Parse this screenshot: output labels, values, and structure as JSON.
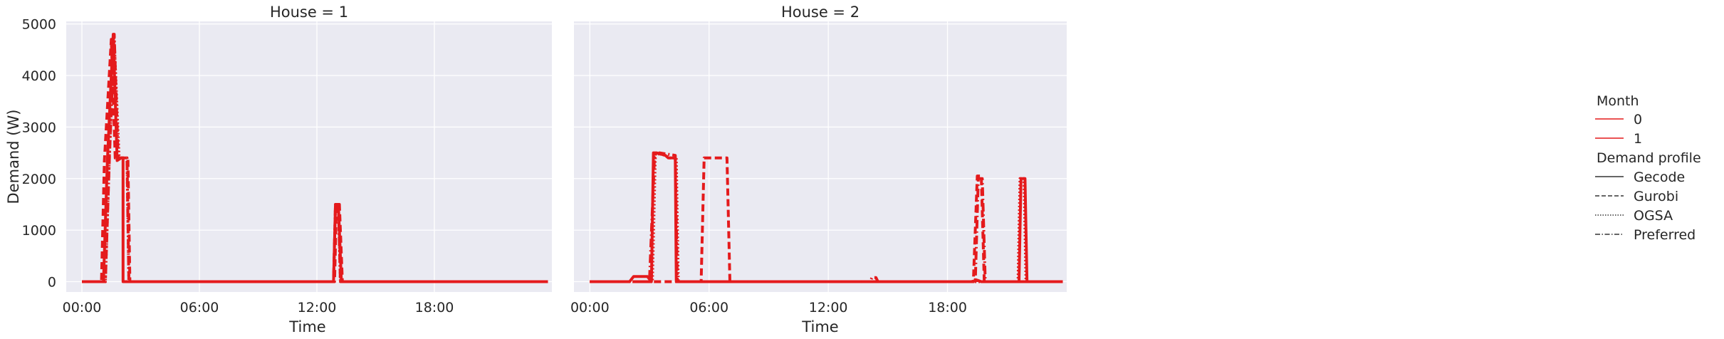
{
  "chart_data": {
    "type": "line",
    "facet_column": "House",
    "panels": [
      {
        "title": "House = 1"
      },
      {
        "title": "House = 2"
      }
    ],
    "xlabel": "Time",
    "ylabel": "Demand (W)",
    "x_ticks": [
      "00:00",
      "06:00",
      "12:00",
      "18:00"
    ],
    "y_ticks": [
      0,
      1000,
      2000,
      3000,
      4000,
      5000
    ],
    "xlim": [
      -0.8,
      24.0
    ],
    "ylim": [
      -200,
      5050
    ],
    "grid": true,
    "legend_position": "right",
    "legend": {
      "hue_title": "Month",
      "hue_entries": [
        "0",
        "1"
      ],
      "style_title": "Demand profile",
      "style_entries": [
        "Gecode",
        "Gurobi",
        "OGSA",
        "Preferred"
      ]
    },
    "colors": {
      "series": "#e41a1c",
      "panel_bg": "#eaeaf2",
      "grid": "#ffffff"
    },
    "series": [
      {
        "panel": 0,
        "style": "Gecode",
        "x": [
          0,
          1.1,
          1.3,
          1.6,
          1.8,
          2.0,
          2.1,
          2.1,
          2.35,
          2.4,
          12.85,
          12.95,
          13.1,
          13.25,
          23.8
        ],
        "y": [
          0,
          0,
          2350,
          4800,
          2350,
          2400,
          2400,
          0,
          0,
          0,
          0,
          1500,
          1500,
          0,
          0
        ]
      },
      {
        "panel": 0,
        "style": "Gurobi",
        "x": [
          0,
          1.0,
          1.15,
          1.5,
          1.7,
          1.9,
          2.1,
          2.35,
          2.45,
          12.9,
          13.0,
          13.15,
          13.3,
          23.8
        ],
        "y": [
          0,
          0,
          2350,
          4700,
          2400,
          2400,
          2400,
          2400,
          0,
          0,
          1500,
          1500,
          0,
          0
        ]
      },
      {
        "panel": 0,
        "style": "OGSA",
        "x": [
          0,
          1.2,
          1.4,
          1.65,
          1.9,
          2.1,
          2.3,
          2.4,
          12.85,
          12.95,
          13.1,
          13.2,
          23.8
        ],
        "y": [
          0,
          0,
          2400,
          4700,
          2400,
          2400,
          2400,
          0,
          0,
          1500,
          1500,
          0,
          0
        ]
      },
      {
        "panel": 0,
        "style": "Preferred",
        "x": [
          0,
          1.2,
          1.4,
          1.65,
          1.85,
          2.05,
          2.3,
          2.4,
          12.85,
          12.95,
          13.1,
          13.2,
          23.8
        ],
        "y": [
          0,
          0,
          2350,
          4800,
          2400,
          2400,
          2400,
          0,
          0,
          1500,
          1500,
          0,
          0
        ]
      },
      {
        "panel": 1,
        "style": "Gecode",
        "x": [
          0,
          2.0,
          2.2,
          2.9,
          3.1,
          3.2,
          3.35,
          3.8,
          3.95,
          4.3,
          4.35,
          19.2,
          19.5,
          19.7,
          21.6,
          21.7,
          21.9,
          22.0,
          23.8
        ],
        "y": [
          0,
          0,
          100,
          100,
          0,
          2500,
          2500,
          2450,
          2400,
          2400,
          0,
          0,
          30,
          0,
          0,
          2000,
          2000,
          0,
          0
        ]
      },
      {
        "panel": 1,
        "style": "Gurobi",
        "x": [
          0,
          5.6,
          5.75,
          6.9,
          7.05,
          19.3,
          19.5,
          19.7,
          19.85,
          23.8
        ],
        "y": [
          0,
          0,
          2400,
          2400,
          0,
          0,
          2050,
          2050,
          0,
          0
        ]
      },
      {
        "panel": 1,
        "style": "OGSA",
        "x": [
          0,
          3.15,
          3.3,
          3.8,
          4.0,
          4.35,
          4.45,
          21.55,
          21.65,
          21.85,
          21.95,
          23.8
        ],
        "y": [
          0,
          0,
          2500,
          2450,
          2400,
          2400,
          0,
          0,
          2000,
          2000,
          0,
          0
        ]
      },
      {
        "panel": 1,
        "style": "Preferred",
        "x": [
          0,
          3.0,
          3.25,
          3.5,
          4.3,
          4.4,
          14.1,
          14.2,
          14.4,
          14.5,
          19.4,
          19.55,
          19.75,
          19.9,
          23.8
        ],
        "y": [
          0,
          0,
          2400,
          2500,
          2450,
          0,
          0,
          80,
          80,
          0,
          0,
          2000,
          2000,
          0,
          0
        ]
      }
    ]
  }
}
